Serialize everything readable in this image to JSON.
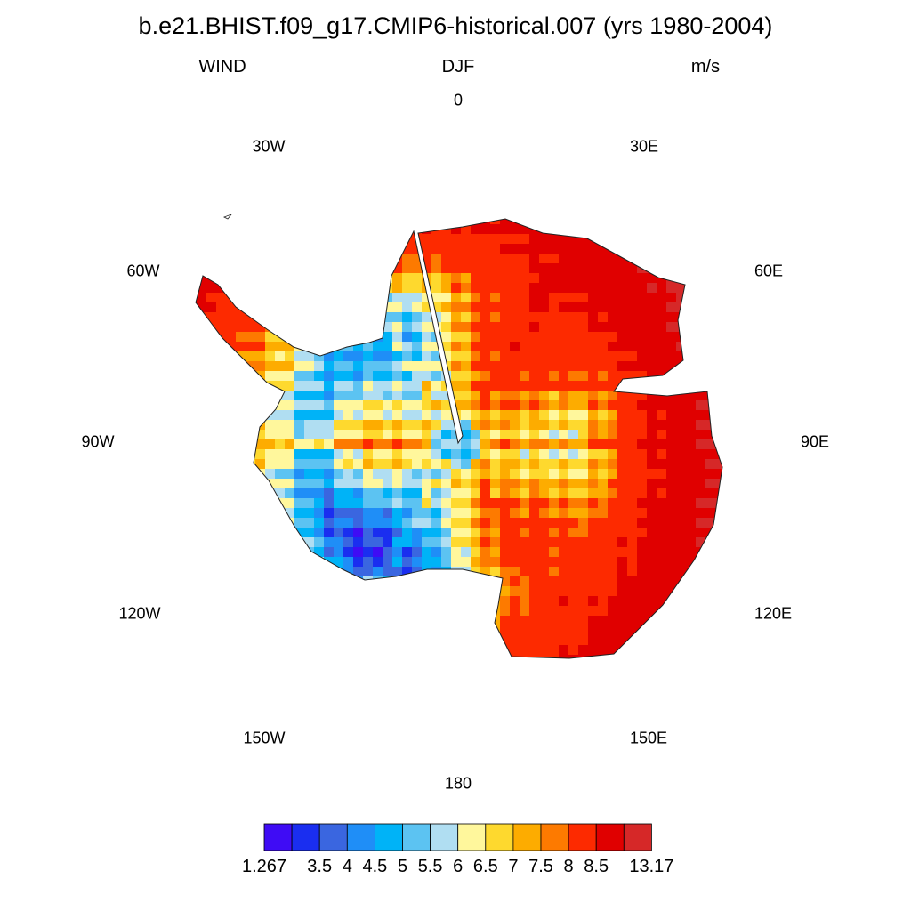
{
  "title": "b.e21.BHIST.f09_g17.CMIP6-historical.007 (yrs 1980-2004)",
  "left_label": "WIND",
  "center_label": "DJF",
  "right_label": "m/s",
  "longitude_labels": [
    "0",
    "30E",
    "60E",
    "90E",
    "120E",
    "150E",
    "180",
    "150W",
    "120W",
    "90W",
    "60W",
    "30W"
  ],
  "colorbar": {
    "tick_labels": [
      "1.267",
      "3.5",
      "4",
      "4.5",
      "5",
      "5.5",
      "6",
      "6.5",
      "7",
      "7.5",
      "8",
      "8.5",
      "13.17"
    ],
    "colors": [
      "#3f0cf5",
      "#1a2ef0",
      "#3a66e0",
      "#1f8ef7",
      "#00b3f7",
      "#5cc3f2",
      "#b0def2",
      "#fff79c",
      "#fed92e",
      "#fdac00",
      "#fd7a00",
      "#fd2a00",
      "#e00000",
      "#d62828"
    ]
  },
  "map_data": {
    "projection": "south polar stereographic",
    "region": "Antarctica",
    "variable": "WIND",
    "units": "m/s",
    "season": "DJF",
    "min_value": 1.267,
    "max_value": 13.17
  }
}
